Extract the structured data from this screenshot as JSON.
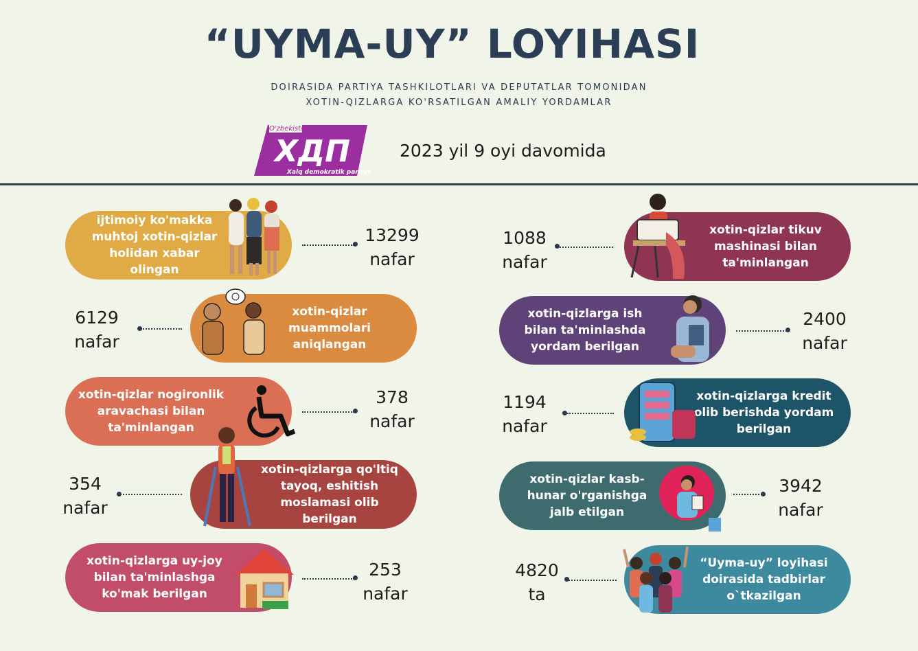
{
  "header": {
    "title": "“UYMA-UY” LOYIHASI",
    "subtitle_line1": "DOIRASIDA PARTIYA TASHKILOTLARI VA DEPUTATLAR TOMONIDAN",
    "subtitle_line2": "XOTIN-QIZLARGA KO'RSATILGAN AMALIY YORDAMLAR",
    "period": "2023 yil 9 oyi davomida"
  },
  "logo": {
    "top_text": "O'zbekiston",
    "main_text": "ХДП",
    "bottom_text": "Xalq demokratik partiyasi",
    "color": "#9b2f9f"
  },
  "items": [
    {
      "label": "ijtimoiy ko'makka muhtoj xotin-qizlar holidan xabar olingan",
      "value": "13299",
      "unit": "nafar",
      "color": "#e0aa45",
      "icon": "women-group-icon"
    },
    {
      "label": "xotin-qizlar muammolari aniqlangan",
      "value": "6129",
      "unit": "nafar",
      "color": "#da8b3f",
      "icon": "conversation-icon"
    },
    {
      "label": "xotin-qizlar nogironlik aravachasi bilan ta'minlangan",
      "value": "378",
      "unit": "nafar",
      "color": "#db6f55",
      "icon": "wheelchair-icon"
    },
    {
      "label": "xotin-qizlarga qo'ltiq tayoq, eshitish moslamasi olib berilgan",
      "value": "354",
      "unit": "nafar",
      "color": "#a8443f",
      "icon": "crutches-woman-icon"
    },
    {
      "label": "xotin-qizlarga uy-joy bilan ta'minlashga ko'mak berilgan",
      "value": "253",
      "unit": "nafar",
      "color": "#c24d6a",
      "icon": "house-icon"
    },
    {
      "label": "xotin-qizlar tikuv mashinasi bilan ta'minlangan",
      "value": "1088",
      "unit": "nafar",
      "color": "#8f3553",
      "icon": "sewing-machine-icon"
    },
    {
      "label": "xotin-qizlarga ish bilan ta'minlashda yordam berilgan",
      "value": "2400",
      "unit": "nafar",
      "color": "#5f4277",
      "icon": "office-woman-icon"
    },
    {
      "label": "xotin-qizlarga kredit olib berishda yordam berilgan",
      "value": "1194",
      "unit": "nafar",
      "color": "#1e5468",
      "icon": "credit-phone-icon"
    },
    {
      "label": "xotin-qizlar kasb-hunar o'rganishga jalb etilgan",
      "value": "3942",
      "unit": "nafar",
      "color": "#3e6b6e",
      "icon": "training-woman-icon"
    },
    {
      "label": "“Uyma-uy” loyihasi doirasida tadbirlar o`tkazilgan",
      "value": "4820",
      "unit": "ta",
      "color": "#3d8a9f",
      "icon": "crowd-icon"
    }
  ]
}
